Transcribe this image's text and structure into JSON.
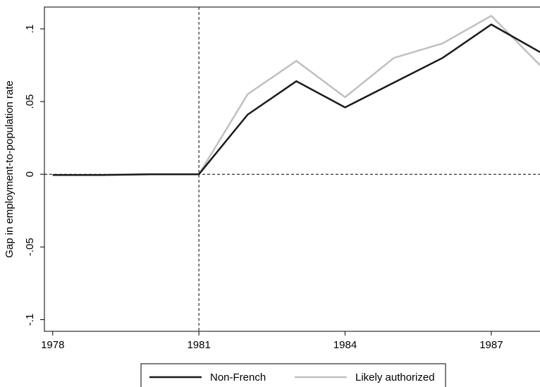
{
  "chart_data": {
    "type": "line",
    "y_label": "Gap in employment-to-population rate",
    "x": [
      1978,
      1979,
      1980,
      1981,
      1982,
      1983,
      1984,
      1985,
      1986,
      1987,
      1988
    ],
    "series": [
      {
        "name": "Non-French",
        "color": "#1a1a1a",
        "values": [
          -0.0005,
          -0.0005,
          0,
          0,
          0.041,
          0.064,
          0.046,
          0.063,
          0.08,
          0.103,
          0.084
        ]
      },
      {
        "name": "Likely authorized",
        "color": "#c0c0c0",
        "values": [
          -0.0005,
          -0.0005,
          0,
          0,
          0.055,
          0.078,
          0.053,
          0.08,
          0.09,
          0.109,
          0.075
        ]
      }
    ],
    "xlim": [
      1977.83,
      1988
    ],
    "ylim": [
      -0.108,
      0.115
    ],
    "xticks": [
      1978,
      1981,
      1984,
      1987
    ],
    "yticks": [
      {
        "value": -0.1,
        "label": "-.1"
      },
      {
        "value": -0.05,
        "label": "-.05"
      },
      0,
      {
        "value": 0.05,
        "label": ".05"
      },
      {
        "value": 0.1,
        "label": ".1"
      }
    ],
    "vline": 1981,
    "hline": 0,
    "legend": "bottom"
  }
}
